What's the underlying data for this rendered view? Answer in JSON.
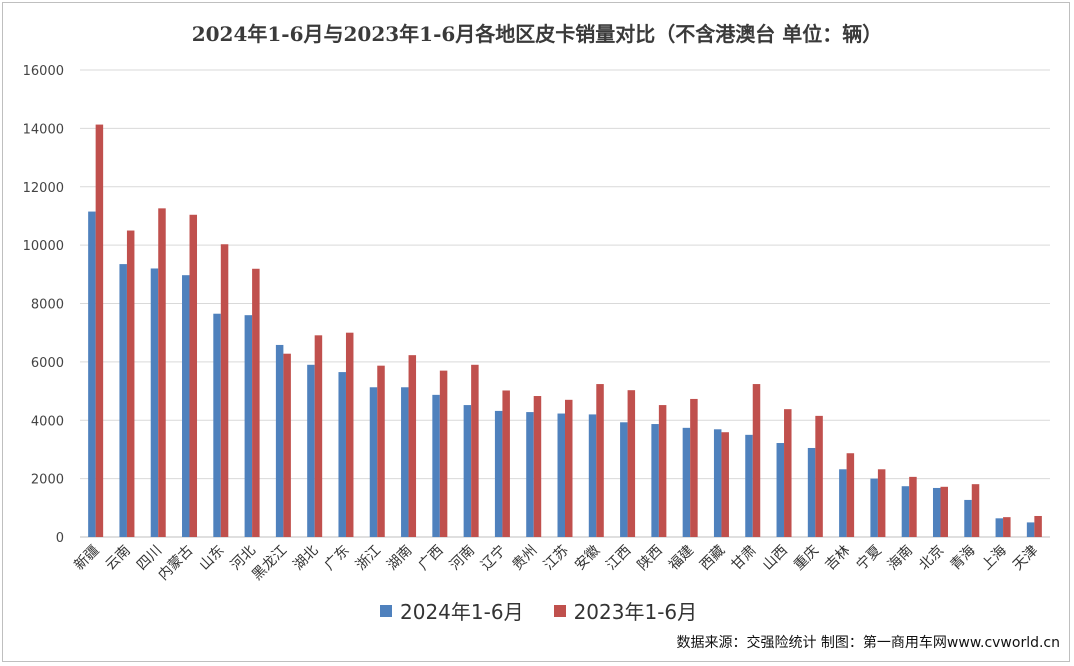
{
  "chart_data": {
    "type": "bar",
    "title": "2024年1-6月与2023年1-6月各地区皮卡销量对比（不含港澳台 单位：辆）",
    "categories": [
      "新疆",
      "云南",
      "四川",
      "内蒙古",
      "山东",
      "河北",
      "黑龙江",
      "湖北",
      "广东",
      "浙江",
      "湖南",
      "广西",
      "河南",
      "辽宁",
      "贵州",
      "江苏",
      "安徽",
      "江西",
      "陕西",
      "福建",
      "西藏",
      "甘肃",
      "山西",
      "重庆",
      "吉林",
      "宁夏",
      "海南",
      "北京",
      "青海",
      "上海",
      "天津"
    ],
    "series": [
      {
        "name": "2024年1-6月",
        "color": "#4f81bd",
        "values": [
          11150,
          9350,
          9200,
          8970,
          7650,
          7600,
          6580,
          5900,
          5650,
          5130,
          5130,
          4870,
          4520,
          4320,
          4280,
          4230,
          4200,
          3930,
          3870,
          3740,
          3690,
          3500,
          3220,
          3050,
          2320,
          2000,
          1740,
          1680,
          1270,
          640,
          500
        ]
      },
      {
        "name": "2023年1-6月",
        "color": "#c0504d",
        "values": [
          14130,
          10500,
          11260,
          11040,
          10030,
          9190,
          6280,
          6910,
          7000,
          5870,
          6230,
          5700,
          5900,
          5020,
          4830,
          4700,
          5240,
          5030,
          4520,
          4730,
          3590,
          5240,
          4380,
          4150,
          2870,
          2320,
          2060,
          1720,
          1810,
          680,
          720
        ]
      }
    ],
    "ylim": [
      0,
      16000
    ],
    "yticks": [
      0,
      2000,
      4000,
      6000,
      8000,
      10000,
      12000,
      14000,
      16000
    ],
    "grid": true,
    "legend_position": "bottom"
  },
  "source_note": "数据来源：交强险统计 制图：第一商用车网www.cvworld.cn"
}
